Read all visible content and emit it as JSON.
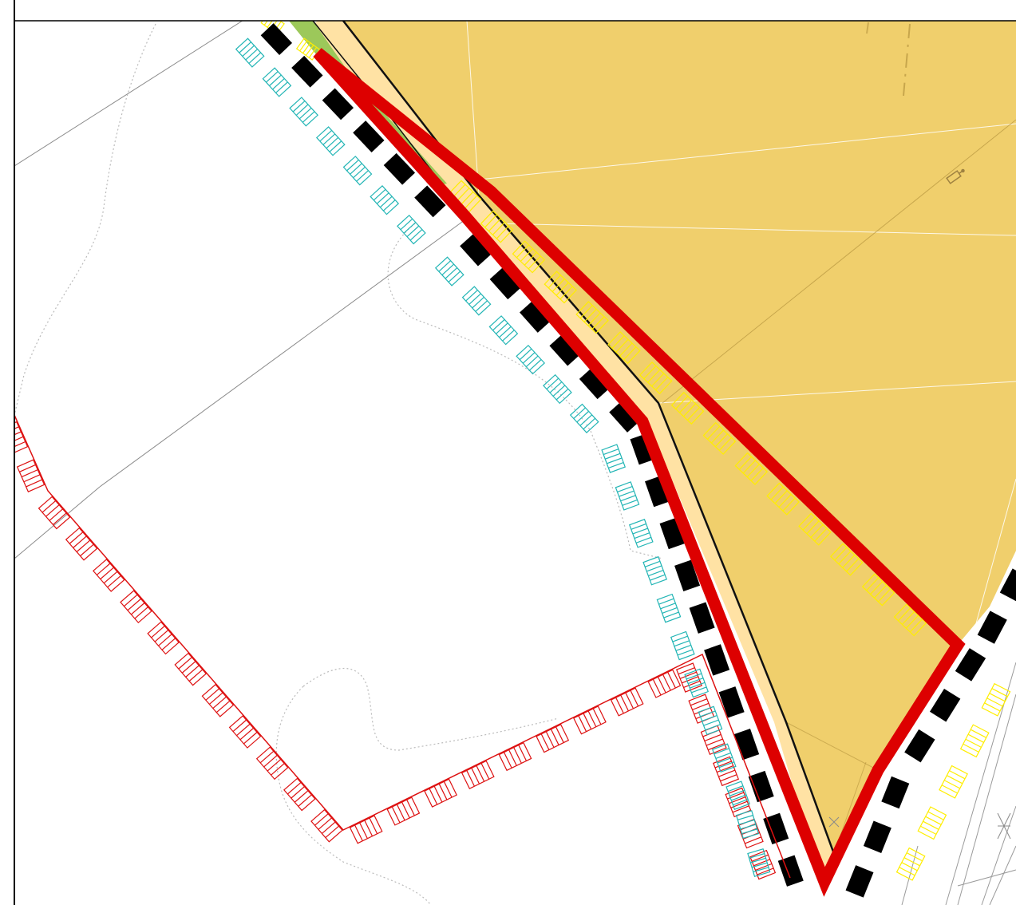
{
  "map": {
    "kind": "zoning / land-use plan excerpt",
    "colors": {
      "zone_fill": "#F0CF6C",
      "strip_fill": "#FFE2A4",
      "green_fill": "#9CC85A",
      "plan_boundary": "#DD0000",
      "buffer_black": "#000000",
      "hatch_cyan": "#22B5B5",
      "hatch_yellow": "#FFEE00",
      "hatch_red": "#DD1111",
      "parcel_lines": "#8A8A8A",
      "contour_dotted": "#BBBBBB",
      "frame": "#000000"
    },
    "icons": [
      "survey-point-icon",
      "survey-point-icon",
      "survey-point-icon"
    ]
  }
}
